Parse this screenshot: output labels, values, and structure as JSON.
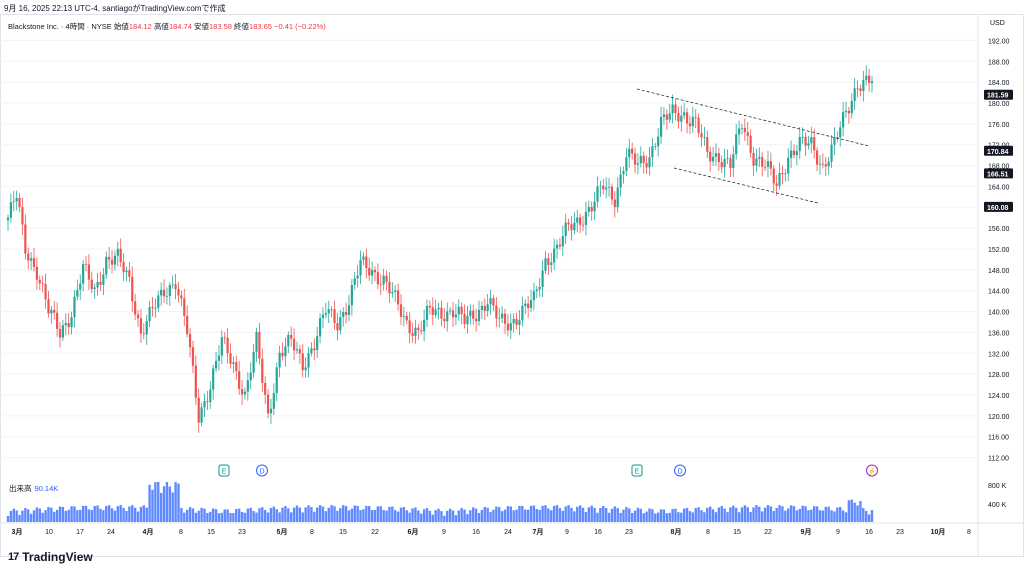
{
  "header": {
    "timestamp_line": "9月 16, 2025 22:13 UTC-4, santiagoがTradingView.comで作成"
  },
  "legend": {
    "symbol": "Blackstone Inc. · 4時間 · NYSE",
    "open_label": "始値",
    "open": "184.12",
    "high_label": "高値",
    "high": "184.74",
    "low_label": "安値",
    "low": "183.58",
    "close_label": "終値",
    "close": "183.65",
    "change": "−0.41 (−0.22%)"
  },
  "price_axis": {
    "currency": "USD",
    "ticks": [
      "192.00",
      "188.00",
      "184.00",
      "180.00",
      "176.00",
      "172.00",
      "168.00",
      "164.00",
      "160.00",
      "156.00",
      "152.00",
      "148.00",
      "144.00",
      "140.00",
      "136.00",
      "132.00",
      "128.00",
      "124.00",
      "120.00",
      "116.00",
      "112.00"
    ],
    "tags": [
      {
        "value": "181.59",
        "color": "#131722"
      },
      {
        "value": "170.84",
        "color": "#131722"
      },
      {
        "value": "166.51",
        "color": "#131722"
      },
      {
        "value": "160.08",
        "color": "#131722"
      }
    ]
  },
  "volume_axis": {
    "ticks": [
      "800 K",
      "400 K"
    ]
  },
  "volume_label": {
    "title": "出来高",
    "value": "90.14K"
  },
  "time_axis": {
    "labels": [
      "3月",
      "10",
      "17",
      "24",
      "4月",
      "8",
      "15",
      "23",
      "5月",
      "8",
      "15",
      "22",
      "6月",
      "9",
      "16",
      "24",
      "7月",
      "9",
      "16",
      "23",
      "8月",
      "8",
      "15",
      "22",
      "9月",
      "9",
      "16",
      "23",
      "10月",
      "8"
    ]
  },
  "events": [
    {
      "letter": "E",
      "kind": "earnings"
    },
    {
      "letter": "D",
      "kind": "dividend"
    },
    {
      "letter": "E",
      "kind": "earnings"
    },
    {
      "letter": "D",
      "kind": "dividend"
    },
    {
      "letter": "⚡",
      "kind": "split-news"
    }
  ],
  "colors": {
    "up": "#26a69a",
    "down": "#ef5350",
    "volume": "#2962ff",
    "channel": "#131722"
  },
  "chart_data": {
    "type": "candlestick",
    "title": "Blackstone Inc. · 4時間 · NYSE",
    "ylim": [
      110,
      194
    ],
    "x_range": [
      "3月",
      "10月 8"
    ],
    "anchors": [
      [
        0,
        158
      ],
      [
        3,
        162
      ],
      [
        6,
        152
      ],
      [
        10,
        148
      ],
      [
        14,
        140
      ],
      [
        18,
        136
      ],
      [
        22,
        140
      ],
      [
        26,
        148
      ],
      [
        30,
        144
      ],
      [
        34,
        150
      ],
      [
        38,
        150
      ],
      [
        42,
        146
      ],
      [
        46,
        136
      ],
      [
        50,
        140
      ],
      [
        54,
        144
      ],
      [
        58,
        146
      ],
      [
        62,
        136
      ],
      [
        66,
        120
      ],
      [
        70,
        126
      ],
      [
        74,
        134
      ],
      [
        78,
        130
      ],
      [
        82,
        124
      ],
      [
        86,
        134
      ],
      [
        90,
        120
      ],
      [
        94,
        132
      ],
      [
        98,
        134
      ],
      [
        102,
        130
      ],
      [
        106,
        134
      ],
      [
        110,
        140
      ],
      [
        114,
        138
      ],
      [
        118,
        142
      ],
      [
        122,
        149
      ],
      [
        126,
        148
      ],
      [
        130,
        146
      ],
      [
        134,
        142
      ],
      [
        138,
        138
      ],
      [
        142,
        136
      ],
      [
        146,
        140
      ],
      [
        150,
        140
      ],
      [
        154,
        140
      ],
      [
        158,
        138
      ],
      [
        162,
        140
      ],
      [
        166,
        142
      ],
      [
        170,
        138
      ],
      [
        174,
        138
      ],
      [
        178,
        140
      ],
      [
        182,
        142
      ],
      [
        186,
        150
      ],
      [
        190,
        152
      ],
      [
        194,
        156
      ],
      [
        198,
        158
      ],
      [
        202,
        160
      ],
      [
        206,
        164
      ],
      [
        210,
        162
      ],
      [
        214,
        170
      ],
      [
        218,
        168
      ],
      [
        222,
        170
      ],
      [
        226,
        176
      ],
      [
        230,
        178
      ],
      [
        234,
        178
      ],
      [
        238,
        176
      ],
      [
        242,
        170
      ],
      [
        246,
        170
      ],
      [
        250,
        168
      ],
      [
        254,
        176
      ],
      [
        258,
        170
      ],
      [
        262,
        168
      ],
      [
        266,
        164
      ],
      [
        270,
        170
      ],
      [
        274,
        172
      ],
      [
        278,
        172
      ],
      [
        282,
        168
      ],
      [
        286,
        172
      ],
      [
        290,
        178
      ],
      [
        294,
        184
      ],
      [
        298,
        184
      ]
    ],
    "channel_lines": [
      {
        "from": [
          "7月 23",
          181
        ],
        "to": [
          "9月 16",
          170.5
        ]
      },
      {
        "from": [
          "8月 1",
          167
        ],
        "to": [
          "9月 5",
          160
        ]
      }
    ]
  }
}
